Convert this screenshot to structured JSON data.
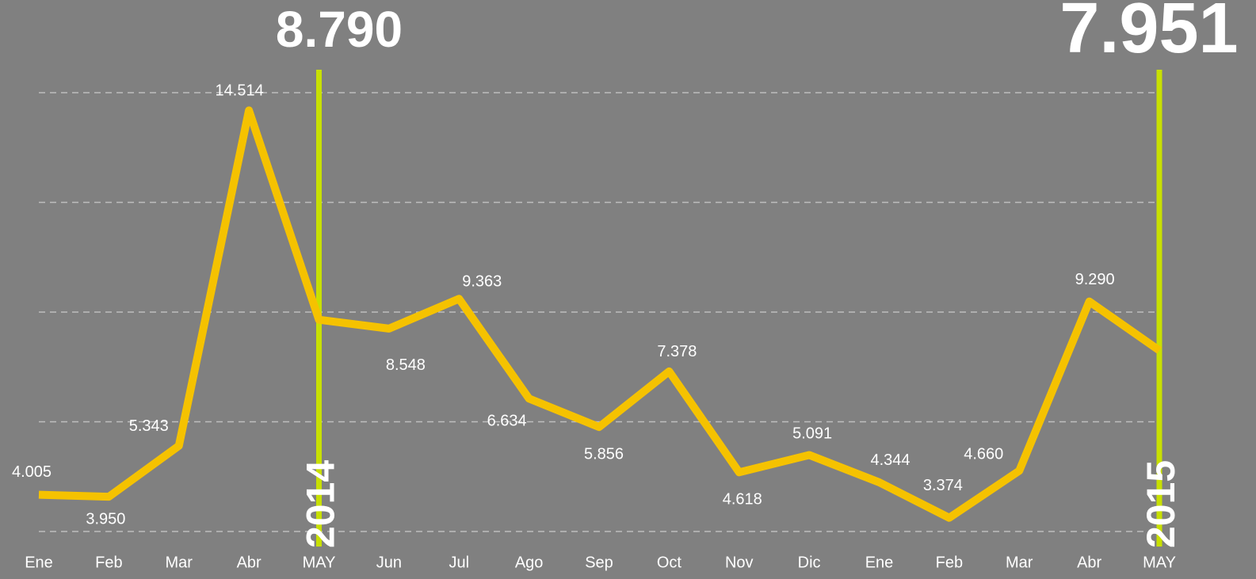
{
  "chart_data": {
    "type": "line",
    "categories": [
      "Ene",
      "Feb",
      "Mar",
      "Abr",
      "MAY",
      "Jun",
      "Jul",
      "Ago",
      "Sep",
      "Oct",
      "Nov",
      "Dic",
      "Ene",
      "Feb",
      "Mar",
      "Abr",
      "MAY"
    ],
    "values": [
      4005,
      3950,
      5343,
      14514,
      8790,
      8548,
      9363,
      6634,
      5856,
      7378,
      4618,
      5091,
      4344,
      3374,
      4660,
      9290,
      7951
    ],
    "value_labels": [
      "4.005",
      "3.950",
      "5.343",
      "14.514",
      "8.790",
      "8.548",
      "9.363",
      "6.634",
      "5.856",
      "7.378",
      "4.618",
      "5.091",
      "4.344",
      "3.374",
      "4.660",
      "9.290",
      "7.951"
    ],
    "color": "#f5c200",
    "highlight_color": "#c8e000",
    "ylim": [
      3000,
      15000
    ],
    "yticks": [
      3000,
      6000,
      9000,
      12000,
      15000
    ],
    "grid": true,
    "annotations": [
      {
        "at": 4,
        "text": "2014"
      },
      {
        "at": 16,
        "text": "2015"
      }
    ]
  }
}
